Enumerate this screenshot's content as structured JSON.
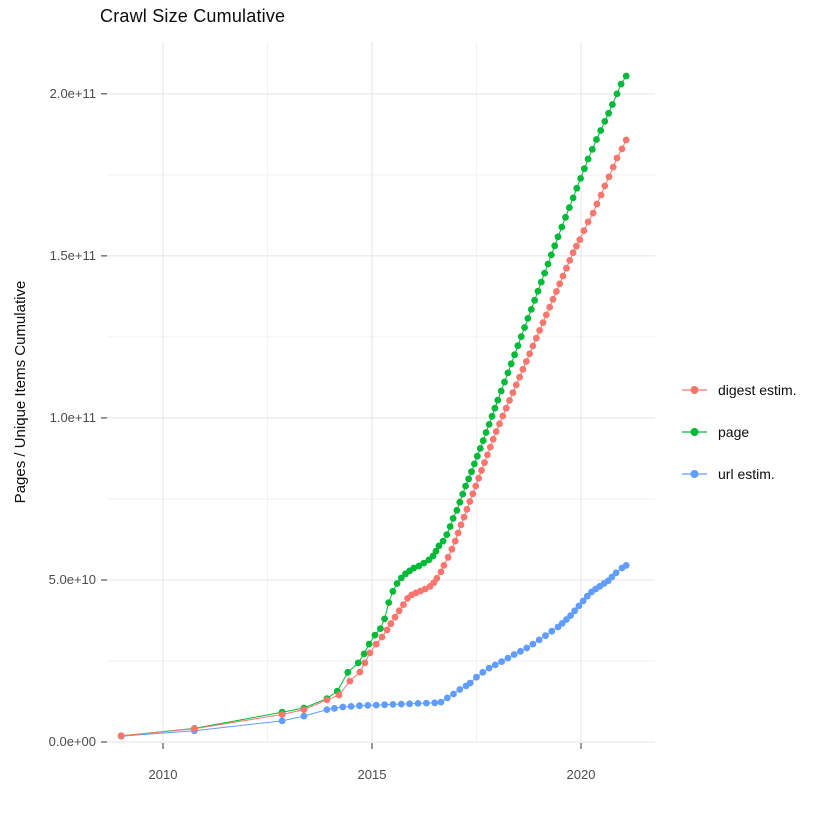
{
  "title": "Crawl Size Cumulative",
  "chart_data": {
    "type": "line",
    "title": "Crawl Size Cumulative",
    "xlabel": "",
    "ylabel": "Pages / Unique Items Cumulative",
    "grid": true,
    "legend_position": "right",
    "x_domain": [
      2008.66,
      2021.77
    ],
    "y_domain": [
      0,
      216
    ],
    "y_unit": "1e9",
    "x_ticks": [
      {
        "value": 2010,
        "label": "2010"
      },
      {
        "value": 2015,
        "label": "2015"
      },
      {
        "value": 2020,
        "label": "2020"
      }
    ],
    "x_minor": [
      2012.5,
      2017.5
    ],
    "y_ticks": [
      {
        "value": 0,
        "label": "0.0e+00"
      },
      {
        "value": 50,
        "label": "5.0e+10"
      },
      {
        "value": 100,
        "label": "1.0e+11"
      },
      {
        "value": 150,
        "label": "1.5e+11"
      },
      {
        "value": 200,
        "label": "2.0e+11"
      }
    ],
    "y_minor": [
      25,
      75,
      125,
      175
    ],
    "point_radius": 3.4,
    "series": [
      {
        "name": "digest estim.",
        "color": "#F8766D",
        "points": [
          [
            2009.0,
            1.9
          ],
          [
            2010.75,
            4.1
          ],
          [
            2012.85,
            8.5
          ],
          [
            2013.37,
            10.0
          ],
          [
            2013.92,
            13.0
          ],
          [
            2014.21,
            14.5
          ],
          [
            2014.47,
            18.8
          ],
          [
            2014.71,
            21.6
          ],
          [
            2014.83,
            24.4
          ],
          [
            2014.95,
            27.5
          ],
          [
            2015.1,
            30.2
          ],
          [
            2015.24,
            32.4
          ],
          [
            2015.36,
            34.6
          ],
          [
            2015.45,
            36.5
          ],
          [
            2015.55,
            38.5
          ],
          [
            2015.65,
            40.5
          ],
          [
            2015.75,
            42.4
          ],
          [
            2015.85,
            44.3
          ],
          [
            2015.95,
            45.4
          ],
          [
            2016.05,
            46.0
          ],
          [
            2016.16,
            46.6
          ],
          [
            2016.27,
            47.2
          ],
          [
            2016.39,
            48.0
          ],
          [
            2016.48,
            49.2
          ],
          [
            2016.55,
            50.5
          ],
          [
            2016.65,
            52.5
          ],
          [
            2016.72,
            54.5
          ],
          [
            2016.82,
            57.0
          ],
          [
            2016.91,
            59.5
          ],
          [
            2016.99,
            62.0
          ],
          [
            2017.06,
            64.5
          ],
          [
            2017.13,
            67.0
          ],
          [
            2017.2,
            69.4
          ],
          [
            2017.27,
            71.8
          ],
          [
            2017.34,
            74.2
          ],
          [
            2017.41,
            76.6
          ],
          [
            2017.48,
            79.0
          ],
          [
            2017.55,
            81.4
          ],
          [
            2017.62,
            83.8
          ],
          [
            2017.69,
            86.2
          ],
          [
            2017.76,
            88.6
          ],
          [
            2017.83,
            91.0
          ],
          [
            2017.9,
            93.4
          ],
          [
            2017.97,
            95.8
          ],
          [
            2018.05,
            98.2
          ],
          [
            2018.13,
            100.6
          ],
          [
            2018.21,
            103.0
          ],
          [
            2018.29,
            105.4
          ],
          [
            2018.37,
            107.8
          ],
          [
            2018.45,
            110.2
          ],
          [
            2018.53,
            112.6
          ],
          [
            2018.61,
            115.0
          ],
          [
            2018.69,
            117.4
          ],
          [
            2018.77,
            119.8
          ],
          [
            2018.85,
            122.2
          ],
          [
            2018.93,
            124.6
          ],
          [
            2019.01,
            127.0
          ],
          [
            2019.09,
            129.4
          ],
          [
            2019.17,
            131.8
          ],
          [
            2019.25,
            134.2
          ],
          [
            2019.33,
            136.6
          ],
          [
            2019.41,
            139.0
          ],
          [
            2019.49,
            141.4
          ],
          [
            2019.57,
            143.8
          ],
          [
            2019.65,
            146.2
          ],
          [
            2019.73,
            148.6
          ],
          [
            2019.81,
            151.0
          ],
          [
            2019.89,
            153.0
          ],
          [
            2019.97,
            155.0
          ],
          [
            2020.07,
            157.8
          ],
          [
            2020.17,
            160.5
          ],
          [
            2020.29,
            163.2
          ],
          [
            2020.38,
            166.0
          ],
          [
            2020.48,
            168.8
          ],
          [
            2020.57,
            171.6
          ],
          [
            2020.67,
            174.4
          ],
          [
            2020.77,
            177.4
          ],
          [
            2020.86,
            180.2
          ],
          [
            2020.98,
            183.0
          ],
          [
            2021.08,
            185.8
          ]
        ]
      },
      {
        "name": "page",
        "color": "#00BA38",
        "points": [
          [
            2009.0,
            1.9
          ],
          [
            2010.75,
            4.2
          ],
          [
            2012.85,
            9.2
          ],
          [
            2013.37,
            10.5
          ],
          [
            2013.92,
            13.4
          ],
          [
            2014.17,
            15.7
          ],
          [
            2014.42,
            21.5
          ],
          [
            2014.67,
            24.4
          ],
          [
            2014.81,
            27.2
          ],
          [
            2014.93,
            30.2
          ],
          [
            2015.07,
            33.0
          ],
          [
            2015.2,
            35.0
          ],
          [
            2015.3,
            38.0
          ],
          [
            2015.4,
            43.0
          ],
          [
            2015.5,
            46.5
          ],
          [
            2015.6,
            48.9
          ],
          [
            2015.7,
            50.6
          ],
          [
            2015.8,
            51.9
          ],
          [
            2015.9,
            52.8
          ],
          [
            2016.0,
            53.7
          ],
          [
            2016.12,
            54.3
          ],
          [
            2016.24,
            55.2
          ],
          [
            2016.36,
            56.2
          ],
          [
            2016.46,
            57.4
          ],
          [
            2016.53,
            58.9
          ],
          [
            2016.6,
            60.5
          ],
          [
            2016.7,
            62.0
          ],
          [
            2016.79,
            64.0
          ],
          [
            2016.87,
            66.5
          ],
          [
            2016.94,
            69.0
          ],
          [
            2017.03,
            71.5
          ],
          [
            2017.1,
            74.0
          ],
          [
            2017.17,
            76.5
          ],
          [
            2017.24,
            79.0
          ],
          [
            2017.31,
            81.2
          ],
          [
            2017.38,
            83.4
          ],
          [
            2017.45,
            85.8
          ],
          [
            2017.52,
            88.2
          ],
          [
            2017.59,
            90.6
          ],
          [
            2017.66,
            93.0
          ],
          [
            2017.73,
            95.5
          ],
          [
            2017.8,
            98.0
          ],
          [
            2017.87,
            100.5
          ],
          [
            2017.94,
            103.0
          ],
          [
            2018.01,
            105.5
          ],
          [
            2018.09,
            108.3
          ],
          [
            2018.17,
            111.1
          ],
          [
            2018.25,
            113.9
          ],
          [
            2018.33,
            116.7
          ],
          [
            2018.41,
            119.5
          ],
          [
            2018.49,
            122.3
          ],
          [
            2018.57,
            125.1
          ],
          [
            2018.65,
            127.9
          ],
          [
            2018.73,
            130.7
          ],
          [
            2018.81,
            133.5
          ],
          [
            2018.89,
            136.3
          ],
          [
            2018.97,
            139.1
          ],
          [
            2019.05,
            141.9
          ],
          [
            2019.13,
            144.7
          ],
          [
            2019.21,
            147.5
          ],
          [
            2019.29,
            150.3
          ],
          [
            2019.37,
            153.1
          ],
          [
            2019.45,
            155.9
          ],
          [
            2019.54,
            158.9
          ],
          [
            2019.63,
            161.9
          ],
          [
            2019.72,
            164.9
          ],
          [
            2019.81,
            167.9
          ],
          [
            2019.9,
            170.9
          ],
          [
            2019.99,
            173.9
          ],
          [
            2020.08,
            176.9
          ],
          [
            2020.17,
            179.9
          ],
          [
            2020.27,
            182.9
          ],
          [
            2020.37,
            185.9
          ],
          [
            2020.47,
            188.7
          ],
          [
            2020.57,
            191.5
          ],
          [
            2020.66,
            194.0
          ],
          [
            2020.75,
            196.7
          ],
          [
            2020.86,
            200.0
          ],
          [
            2020.96,
            203.0
          ],
          [
            2021.08,
            205.5
          ]
        ]
      },
      {
        "name": "url estim.",
        "color": "#619CFF",
        "points": [
          [
            2009.0,
            1.8
          ],
          [
            2010.75,
            3.5
          ],
          [
            2012.85,
            6.5
          ],
          [
            2013.37,
            8.0
          ],
          [
            2013.92,
            10.0
          ],
          [
            2014.1,
            10.4
          ],
          [
            2014.3,
            10.8
          ],
          [
            2014.5,
            11.0
          ],
          [
            2014.7,
            11.2
          ],
          [
            2014.9,
            11.3
          ],
          [
            2015.1,
            11.4
          ],
          [
            2015.3,
            11.5
          ],
          [
            2015.5,
            11.6
          ],
          [
            2015.7,
            11.7
          ],
          [
            2015.9,
            11.8
          ],
          [
            2016.1,
            11.9
          ],
          [
            2016.3,
            12.0
          ],
          [
            2016.5,
            12.1
          ],
          [
            2016.65,
            12.3
          ],
          [
            2016.8,
            13.6
          ],
          [
            2016.95,
            14.8
          ],
          [
            2017.1,
            16.2
          ],
          [
            2017.25,
            17.3
          ],
          [
            2017.35,
            18.2
          ],
          [
            2017.5,
            20.0
          ],
          [
            2017.65,
            21.5
          ],
          [
            2017.8,
            22.8
          ],
          [
            2017.95,
            23.8
          ],
          [
            2018.1,
            24.8
          ],
          [
            2018.25,
            25.9
          ],
          [
            2018.4,
            27.0
          ],
          [
            2018.55,
            28.0
          ],
          [
            2018.7,
            29.0
          ],
          [
            2018.85,
            30.2
          ],
          [
            2019.0,
            31.5
          ],
          [
            2019.15,
            32.8
          ],
          [
            2019.3,
            34.2
          ],
          [
            2019.45,
            35.5
          ],
          [
            2019.55,
            36.6
          ],
          [
            2019.65,
            37.8
          ],
          [
            2019.75,
            39.0
          ],
          [
            2019.85,
            40.5
          ],
          [
            2019.95,
            42.0
          ],
          [
            2020.05,
            43.5
          ],
          [
            2020.15,
            45.0
          ],
          [
            2020.25,
            46.3
          ],
          [
            2020.35,
            47.2
          ],
          [
            2020.45,
            48.0
          ],
          [
            2020.55,
            48.9
          ],
          [
            2020.65,
            49.7
          ],
          [
            2020.74,
            50.9
          ],
          [
            2020.84,
            52.2
          ],
          [
            2020.98,
            53.7
          ],
          [
            2021.08,
            54.5
          ]
        ]
      }
    ],
    "draw_order": [
      2,
      1,
      0
    ],
    "colors": {
      "grid_major": "#e4e4e4",
      "grid_minor": "#f2f2f2",
      "tick_mark": "#333333",
      "tick_text": "#4d4d4d",
      "text": "#0d0d0d"
    }
  }
}
